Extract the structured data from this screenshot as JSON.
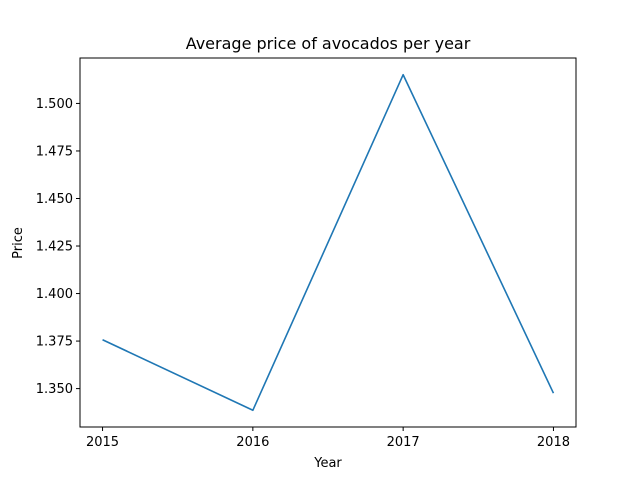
{
  "chart_data": {
    "type": "line",
    "title": "Average price of avocados per year",
    "xlabel": "Year",
    "ylabel": "Price",
    "x": [
      2015,
      2016,
      2017,
      2018
    ],
    "x_tick_labels": [
      "2015",
      "2016",
      "2017",
      "2018"
    ],
    "series": [
      {
        "values": [
          1.3757,
          1.3386,
          1.5151,
          1.3476
        ],
        "color": "#1f77b4"
      }
    ],
    "xlim": [
      2014.85,
      2018.15
    ],
    "ylim": [
      1.3298,
      1.5239
    ],
    "y_ticks": [
      1.35,
      1.375,
      1.4,
      1.425,
      1.45,
      1.475,
      1.5
    ],
    "y_tick_labels": [
      "1.350",
      "1.375",
      "1.400",
      "1.425",
      "1.450",
      "1.475",
      "1.500"
    ],
    "grid": false,
    "legend": "none"
  }
}
